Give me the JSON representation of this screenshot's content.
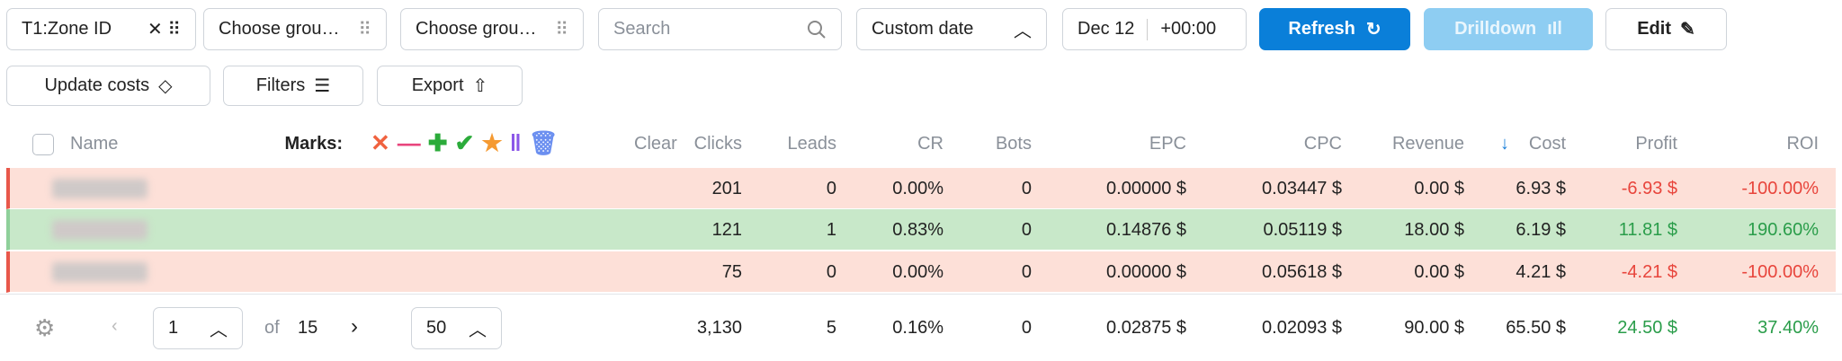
{
  "toolbar": {
    "zone_filter": "T1:Zone ID",
    "group_1": "Choose grou…",
    "group_2": "Choose grou…",
    "search_placeholder": "Search",
    "date_mode": "Custom date",
    "date": "Dec 12",
    "timezone": "+00:00",
    "refresh": "Refresh",
    "drilldown": "Drilldown",
    "edit": "Edit",
    "update_costs": "Update costs",
    "filters": "Filters",
    "export": "Export"
  },
  "table": {
    "headers": [
      "Name",
      "Marks:",
      "Clear",
      "Clicks",
      "Leads",
      "CR",
      "Bots",
      "EPC",
      "CPC",
      "Revenue",
      "Cost",
      "Profit",
      "ROI"
    ],
    "rows": [
      {
        "bg": "#fde0d8",
        "edge": "#e8574a",
        "accent": "#e8453c",
        "cells": [
          "201",
          "0",
          "0.00%",
          "0",
          "0.00000 $",
          "0.03447 $",
          "0.00 $",
          "6.93 $",
          "-6.93 $",
          "-100.00%"
        ]
      },
      {
        "bg": "#c8e8c9",
        "edge": "#8fd09a",
        "accent": "#2a9d4a",
        "cells": [
          "121",
          "1",
          "0.83%",
          "0",
          "0.14876 $",
          "0.05119 $",
          "18.00 $",
          "6.19 $",
          "11.81 $",
          "190.60%"
        ]
      },
      {
        "bg": "#fde0d8",
        "edge": "#e8574a",
        "accent": "#e8453c",
        "cells": [
          "75",
          "0",
          "0.00%",
          "0",
          "0.00000 $",
          "0.05618 $",
          "0.00 $",
          "4.21 $",
          "-4.21 $",
          "-100.00%"
        ]
      }
    ],
    "totals": {
      "accent": "#2a9d4a",
      "cells": [
        "3,130",
        "5",
        "0.16%",
        "0",
        "0.02875 $",
        "0.02093 $",
        "90.00 $",
        "65.50 $",
        "24.50 $",
        "37.40%"
      ]
    }
  },
  "pagination": {
    "page": "1",
    "of": "of",
    "pages": "15",
    "per_page": "50"
  }
}
